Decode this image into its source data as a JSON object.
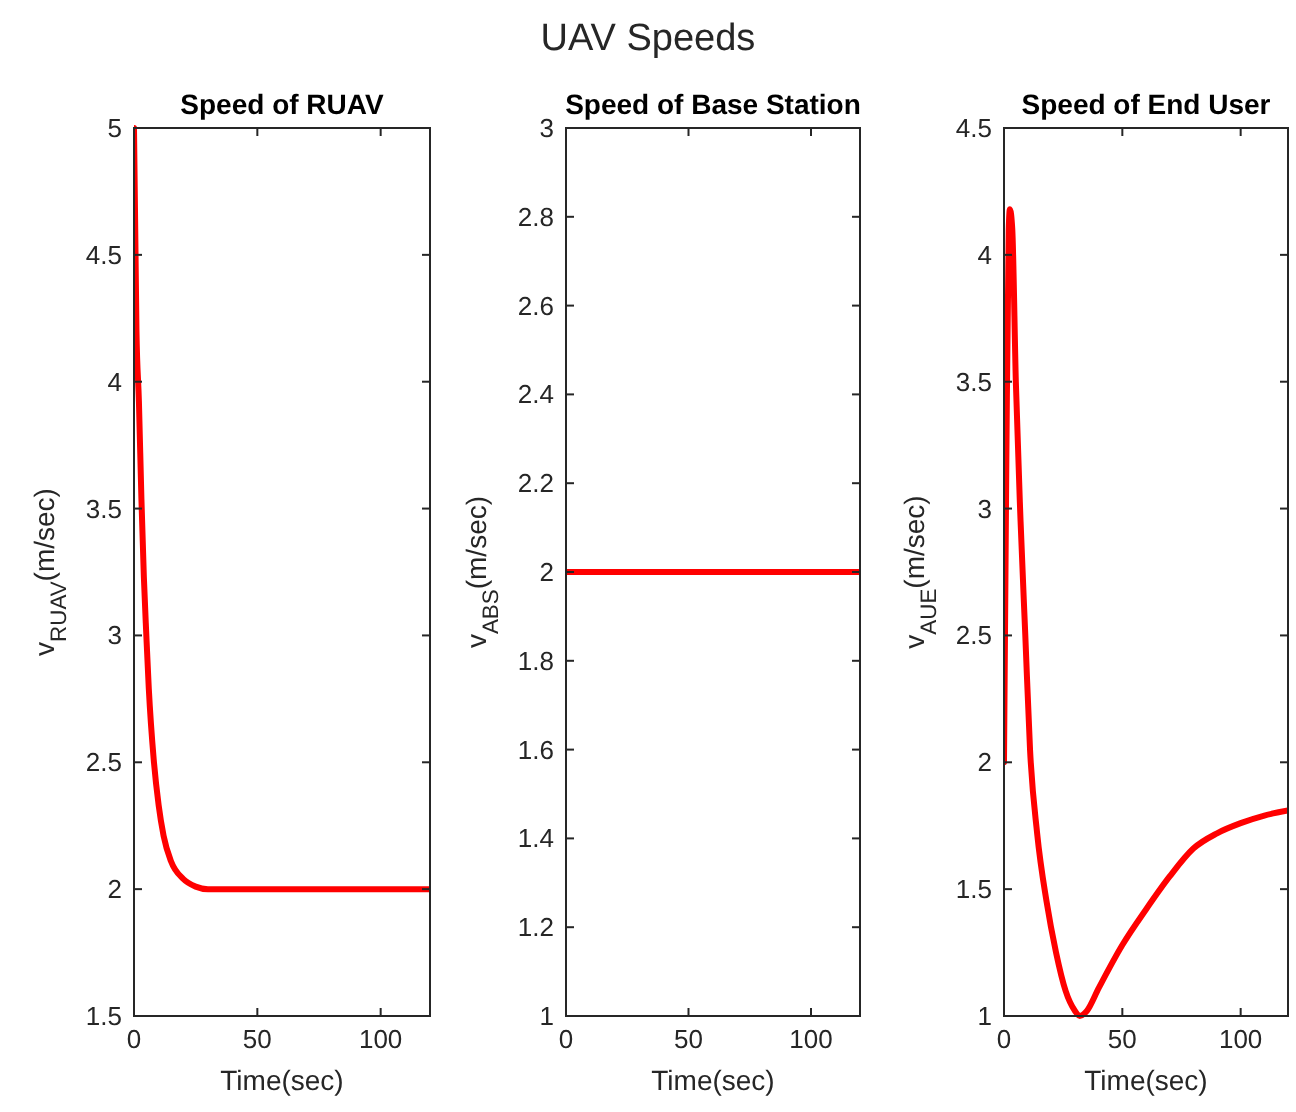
{
  "chart_data": [
    {
      "type": "line",
      "title": "Speed of RUAV",
      "xlabel": "Time(sec)",
      "ylabel": "v$_{RUAV}$(m/sec)",
      "annotations": [
        "UAV Speeds"
      ],
      "xlim": [
        0,
        120
      ],
      "xticks": [
        0,
        50,
        100
      ],
      "ylim": [
        1.5,
        5
      ],
      "yticks": [
        1.5,
        2,
        2.5,
        3,
        3.5,
        4,
        4.5,
        5
      ],
      "grid": false,
      "series": [
        {
          "color": "#ff0000",
          "x": [
            0,
            1,
            2,
            3,
            4,
            5,
            6,
            8,
            10,
            12,
            15,
            20,
            25,
            30,
            40,
            50,
            120
          ],
          "values": [
            5,
            4.2,
            3.92,
            3.54,
            3.23,
            3.0,
            2.79,
            2.51,
            2.33,
            2.21,
            2.11,
            2.04,
            2.01,
            2.0,
            2.0,
            2,
            2
          ]
        }
      ]
    },
    {
      "type": "line",
      "title": "Speed of Base Station",
      "xlabel": "Time(sec)",
      "ylabel": "v$_{ABS}$(m/sec)",
      "xlim": [
        0,
        120
      ],
      "xticks": [
        0,
        50,
        100
      ],
      "ylim": [
        1,
        3
      ],
      "yticks": [
        1,
        1.2,
        1.4,
        1.6,
        1.8,
        2,
        2.2,
        2.4,
        2.6,
        2.8,
        3
      ],
      "grid": false,
      "series": [
        {
          "color": "#ff0000",
          "x": [
            0,
            120
          ],
          "values": [
            2,
            2
          ]
        }
      ]
    },
    {
      "type": "line",
      "title": "Speed of End User",
      "xlabel": "Time(sec)",
      "ylabel": "v$_{AUE}$(m/sec)",
      "xlim": [
        0,
        120
      ],
      "xticks": [
        0,
        50,
        100
      ],
      "ylim": [
        1,
        4.5
      ],
      "yticks": [
        1,
        1.5,
        2,
        2.5,
        3,
        3.5,
        4,
        4.5
      ],
      "grid": false,
      "series": [
        {
          "color": "#ff0000",
          "x": [
            0,
            1,
            2,
            2.5,
            3.5,
            5,
            7,
            9,
            11,
            14,
            18,
            22,
            26,
            30,
            32,
            35,
            40,
            50,
            60,
            70,
            80,
            90,
            100,
            110,
            120
          ],
          "values": [
            2,
            3.2,
            4.1,
            4.18,
            4.1,
            3.5,
            2.95,
            2.5,
            2.05,
            1.72,
            1.45,
            1.25,
            1.1,
            1.02,
            1.0,
            1.02,
            1.11,
            1.28,
            1.42,
            1.55,
            1.66,
            1.72,
            1.76,
            1.79,
            1.81
          ]
        }
      ]
    }
  ]
}
